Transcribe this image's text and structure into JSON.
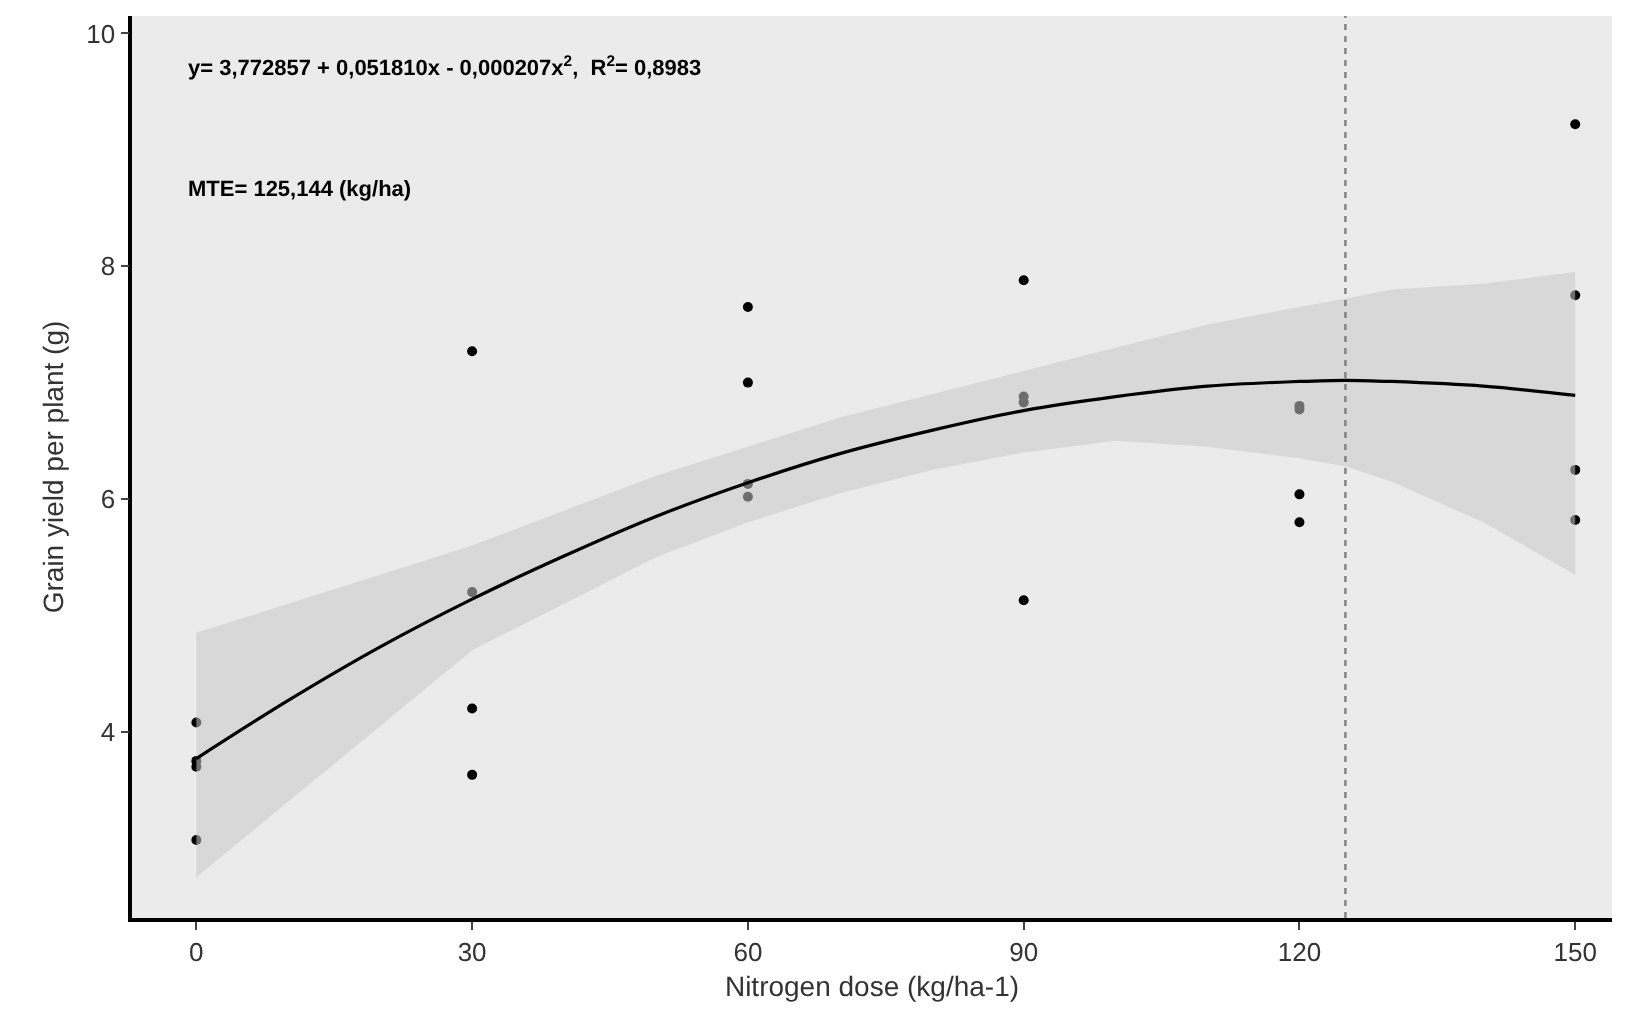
{
  "chart_data": {
    "type": "scatter",
    "xlabel": "Nitrogen dose (kg/ha-1)",
    "ylabel": "Grain yield per plant (g)",
    "xlim": [
      -7,
      154
    ],
    "xticks": [
      0,
      30,
      60,
      90,
      120,
      150
    ],
    "ylim": [
      2.4,
      10.15
    ],
    "yticks": [
      4,
      6,
      8,
      10
    ],
    "grid": false,
    "series": [
      {
        "marker": "circle",
        "color": "#000000",
        "x": [
          0,
          0,
          0,
          0,
          30,
          30,
          30,
          30,
          60,
          60,
          60,
          60,
          90,
          90,
          90,
          90,
          120,
          120,
          120,
          120,
          150,
          150,
          150,
          150
        ],
        "values": [
          4.08,
          3.75,
          3.7,
          3.07,
          7.27,
          5.2,
          4.2,
          3.63,
          7.65,
          7.0,
          6.13,
          6.02,
          7.88,
          6.88,
          6.83,
          5.13,
          6.8,
          6.77,
          6.04,
          5.8,
          9.22,
          7.75,
          6.25,
          5.82
        ]
      },
      {
        "type": "line",
        "marker": "none",
        "line_style": "solid",
        "color": "#000000",
        "x": [
          0,
          10,
          20,
          30,
          40,
          50,
          60,
          70,
          80,
          90,
          100,
          110,
          120,
          125,
          130,
          140,
          150
        ],
        "values": [
          3.77,
          4.27,
          4.73,
          5.14,
          5.51,
          5.85,
          6.14,
          6.39,
          6.59,
          6.76,
          6.88,
          6.97,
          7.01,
          7.02,
          7.01,
          6.97,
          6.89
        ],
        "lower": [
          2.75,
          3.4,
          4.05,
          4.7,
          5.1,
          5.5,
          5.8,
          6.05,
          6.25,
          6.4,
          6.5,
          6.45,
          6.35,
          6.28,
          6.15,
          5.8,
          5.35
        ],
        "upper": [
          4.85,
          5.1,
          5.35,
          5.6,
          5.9,
          6.2,
          6.45,
          6.7,
          6.9,
          7.1,
          7.3,
          7.5,
          7.65,
          7.72,
          7.8,
          7.85,
          7.95
        ]
      }
    ],
    "ref_lines": [
      {
        "axis": "x",
        "value": 125,
        "color": "#808080",
        "line_style": "dotted"
      }
    ],
    "annotations": [
      "y= 3,772857 + 0,051810x - 0,000207x$^{2}$,  R$^{2}$= 0,8983",
      "MTE= 125,144 (kg/ha)"
    ]
  }
}
